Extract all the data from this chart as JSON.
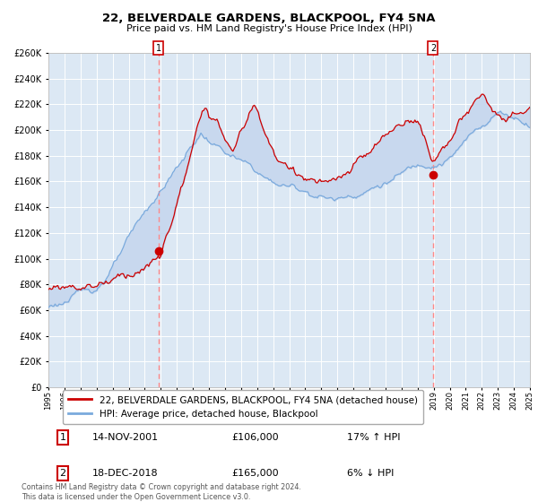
{
  "title": "22, BELVERDALE GARDENS, BLACKPOOL, FY4 5NA",
  "subtitle": "Price paid vs. HM Land Registry's House Price Index (HPI)",
  "ylim": [
    0,
    260000
  ],
  "yticks": [
    0,
    20000,
    40000,
    60000,
    80000,
    100000,
    120000,
    140000,
    160000,
    180000,
    200000,
    220000,
    240000,
    260000
  ],
  "year_start": 1995,
  "year_end": 2025,
  "sale1_date": "14-NOV-2001",
  "sale1_price": 106000,
  "sale1_hpi_pct": "17%",
  "sale1_hpi_dir": "↑",
  "sale2_date": "18-DEC-2018",
  "sale2_price": 165000,
  "sale2_hpi_pct": "6%",
  "sale2_hpi_dir": "↓",
  "legend1": "22, BELVERDALE GARDENS, BLACKPOOL, FY4 5NA (detached house)",
  "legend2": "HPI: Average price, detached house, Blackpool",
  "red_line_color": "#cc0000",
  "blue_line_color": "#7aaadd",
  "fill_color": "#c8d8ee",
  "vline_color": "#ff8888",
  "marker_color": "#cc0000",
  "bg_color": "#dce8f4",
  "grid_color": "#ffffff",
  "footnote": "Contains HM Land Registry data © Crown copyright and database right 2024.\nThis data is licensed under the Open Government Licence v3.0.",
  "sale1_x": 2001.87,
  "sale2_x": 2018.96
}
